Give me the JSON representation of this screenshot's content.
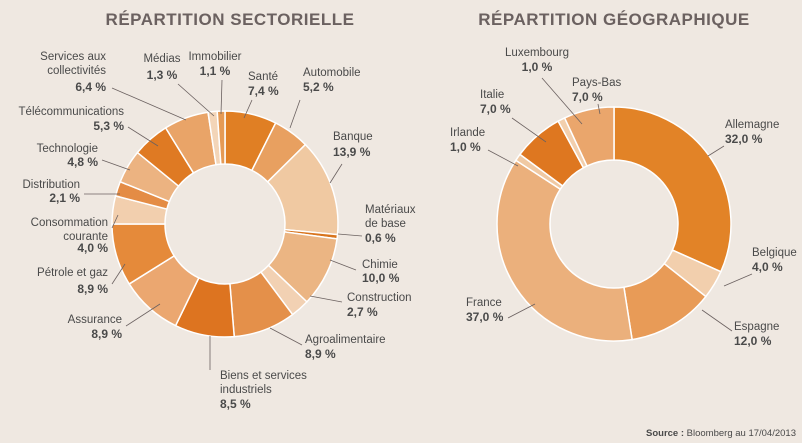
{
  "chart_data": [
    {
      "type": "pie",
      "donut": true,
      "title": "RÉPARTITION SECTORIELLE",
      "slices": [
        {
          "label": "Santé",
          "value": 7.4,
          "display": "7,4 %",
          "color": "#e07f24"
        },
        {
          "label": "Automobile",
          "value": 5.2,
          "display": "5,2 %",
          "color": "#e8a060"
        },
        {
          "label": "Banque",
          "value": 13.9,
          "display": "13,9 %",
          "color": "#f0c9a2"
        },
        {
          "label": "Matériaux de base",
          "value": 0.6,
          "display": "0,6 %",
          "color": "#d8741d"
        },
        {
          "label": "Chimie",
          "value": 10.0,
          "display": "10,0 %",
          "color": "#ebb583"
        },
        {
          "label": "Construction",
          "value": 2.7,
          "display": "2,7 %",
          "color": "#f2d1b3"
        },
        {
          "label": "Agroalimentaire",
          "value": 8.9,
          "display": "8,9 %",
          "color": "#e4904a"
        },
        {
          "label": "Biens et services industriels",
          "value": 8.5,
          "display": "8,5 %",
          "color": "#dd7420"
        },
        {
          "label": "Assurance",
          "value": 8.9,
          "display": "8,9 %",
          "color": "#eba770"
        },
        {
          "label": "Pétrole et gaz",
          "value": 8.9,
          "display": "8,9 %",
          "color": "#e58a3a"
        },
        {
          "label": "Consommation courante",
          "value": 4.0,
          "display": "4,0 %",
          "color": "#f2cfae"
        },
        {
          "label": "Distribution",
          "value": 2.1,
          "display": "2,1 %",
          "color": "#e48c45"
        },
        {
          "label": "Technologie",
          "value": 4.8,
          "display": "4,8 %",
          "color": "#ecb381"
        },
        {
          "label": "Télécommunications",
          "value": 5.3,
          "display": "5,3 %",
          "color": "#df7a23"
        },
        {
          "label": "Services aux collectivités",
          "value": 6.4,
          "display": "6,4 %",
          "color": "#e9a468"
        },
        {
          "label": "Médias",
          "value": 1.3,
          "display": "1,3 %",
          "color": "#f3d5b8"
        },
        {
          "label": "Immobilier",
          "value": 1.1,
          "display": "1,1 %",
          "color": "#e59a55"
        }
      ]
    },
    {
      "type": "pie",
      "donut": true,
      "title": "RÉPARTITION GÉOGRAPHIQUE",
      "slices": [
        {
          "label": "Allemagne",
          "value": 32.0,
          "display": "32,0 %",
          "color": "#e28327"
        },
        {
          "label": "Belgique",
          "value": 4.0,
          "display": "4,0 %",
          "color": "#f2cfad"
        },
        {
          "label": "Espagne",
          "value": 12.0,
          "display": "12,0 %",
          "color": "#e89b57"
        },
        {
          "label": "France",
          "value": 37.0,
          "display": "37,0 %",
          "color": "#ebb07c"
        },
        {
          "label": "Irlande",
          "value": 1.0,
          "display": "1,0 %",
          "color": "#f0c9a3"
        },
        {
          "label": "Italie",
          "value": 7.0,
          "display": "7,0 %",
          "color": "#de7720"
        },
        {
          "label": "Luxembourg",
          "value": 1.0,
          "display": "1,0 %",
          "color": "#f2cfad"
        },
        {
          "label": "Pays-Bas",
          "value": 7.0,
          "display": "7,0 %",
          "color": "#eaa66c"
        }
      ]
    }
  ],
  "source": {
    "prefix": "Source :",
    "text": "Bloomberg au 17/04/2013"
  }
}
